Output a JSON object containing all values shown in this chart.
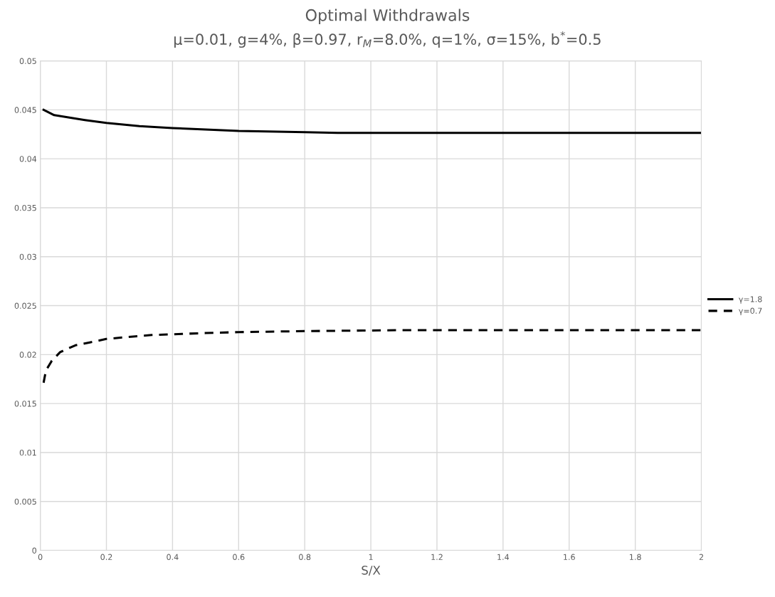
{
  "chart_data": {
    "type": "line",
    "title": "Optimal Withdrawals",
    "subtitle": "μ=0.01, g=4%, β=0.97, r$_{M}$=8.0%, q=1%, σ=15%, b$^{*}$=0.5",
    "xlabel": "S/X",
    "series": [
      {
        "name": "γ=1.8",
        "color": "#000000",
        "line_style": "solid",
        "x": [
          0.01,
          0.042,
          0.135,
          0.2,
          0.3,
          0.4,
          0.6,
          0.8,
          0.9,
          1.2,
          1.6,
          2.0
        ],
        "values": [
          0.045,
          0.04446,
          0.04396,
          0.04366,
          0.04334,
          0.04314,
          0.04285,
          0.04272,
          0.04265,
          0.04265,
          0.04265,
          0.04265
        ]
      },
      {
        "name": "γ=0.7",
        "color": "#000000",
        "line_style": "dashed",
        "x": [
          0.01,
          0.017,
          0.035,
          0.06,
          0.106,
          0.15,
          0.2,
          0.265,
          0.337,
          0.4,
          0.5,
          0.6,
          0.8,
          1.1,
          1.5,
          2.0
        ],
        "values": [
          0.01713,
          0.01838,
          0.01938,
          0.02025,
          0.02095,
          0.02125,
          0.0216,
          0.0218,
          0.022,
          0.02208,
          0.0222,
          0.0223,
          0.0224,
          0.0225,
          0.0225,
          0.0225
        ]
      }
    ],
    "xlim": [
      0,
      2
    ],
    "xticks": [
      0,
      0.2,
      0.4,
      0.6,
      0.8,
      1,
      1.2,
      1.4,
      1.6,
      1.8,
      2
    ],
    "ylim": [
      0,
      0.05
    ],
    "yticks": [
      0,
      0.005,
      0.01,
      0.015,
      0.02,
      0.025,
      0.03,
      0.035,
      0.04,
      0.045,
      0.05
    ],
    "grid": true,
    "legend": "right",
    "marker": "none"
  }
}
